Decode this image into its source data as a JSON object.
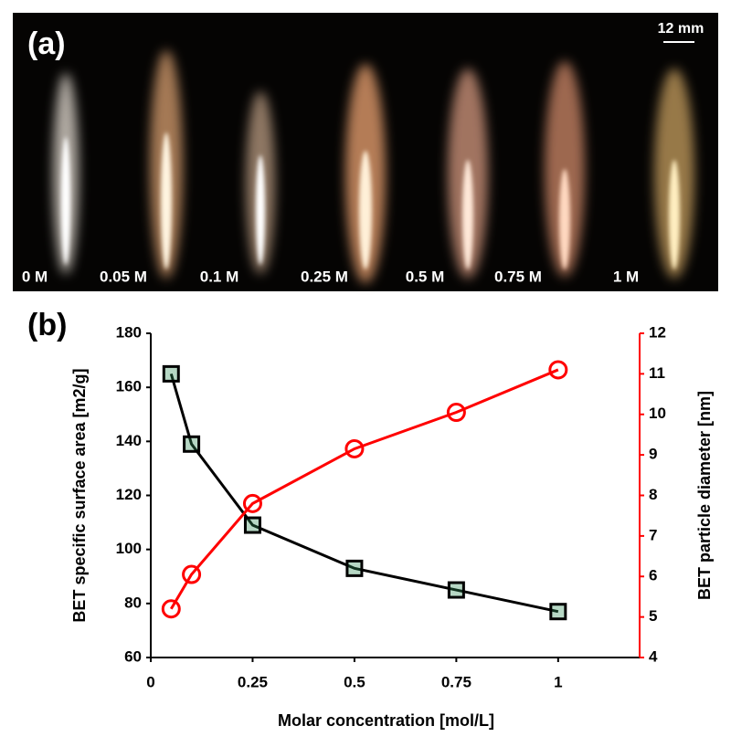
{
  "photo": {
    "panel_label": "(a)",
    "scale_bar": "12 mm",
    "labels": [
      "0 M",
      "0.05 M",
      "0.1 M",
      "0.25 M",
      "0.5 M",
      "0.75 M",
      "1 M"
    ]
  },
  "chart_data": {
    "type": "line",
    "panel_label": "(b)",
    "x_label": "Molar concentration [mol/L]",
    "y_label": "BET specific surface area [m2/g]",
    "y2_label": "BET particle diameter [nm]",
    "x": [
      0.05,
      0.1,
      0.25,
      0.5,
      0.75,
      1
    ],
    "xlim": [
      0,
      1.2
    ],
    "xticks": [
      0,
      0.25,
      0.5,
      0.75,
      1
    ],
    "ylim": [
      60,
      180
    ],
    "yticks": [
      60,
      80,
      100,
      120,
      140,
      160,
      180
    ],
    "y2lim": [
      4,
      12
    ],
    "y2ticks": [
      4,
      5,
      6,
      7,
      8,
      9,
      10,
      11,
      12
    ],
    "y2_color": "#ff0000",
    "series": [
      {
        "color": "#000000",
        "marker": "square",
        "values": [
          165,
          139,
          109,
          93,
          85,
          77
        ]
      },
      {
        "color": "#ff0000",
        "marker": "circle",
        "axis": "y2",
        "values": [
          5.2,
          6.05,
          7.8,
          9.15,
          10.05,
          11.1
        ]
      }
    ]
  }
}
